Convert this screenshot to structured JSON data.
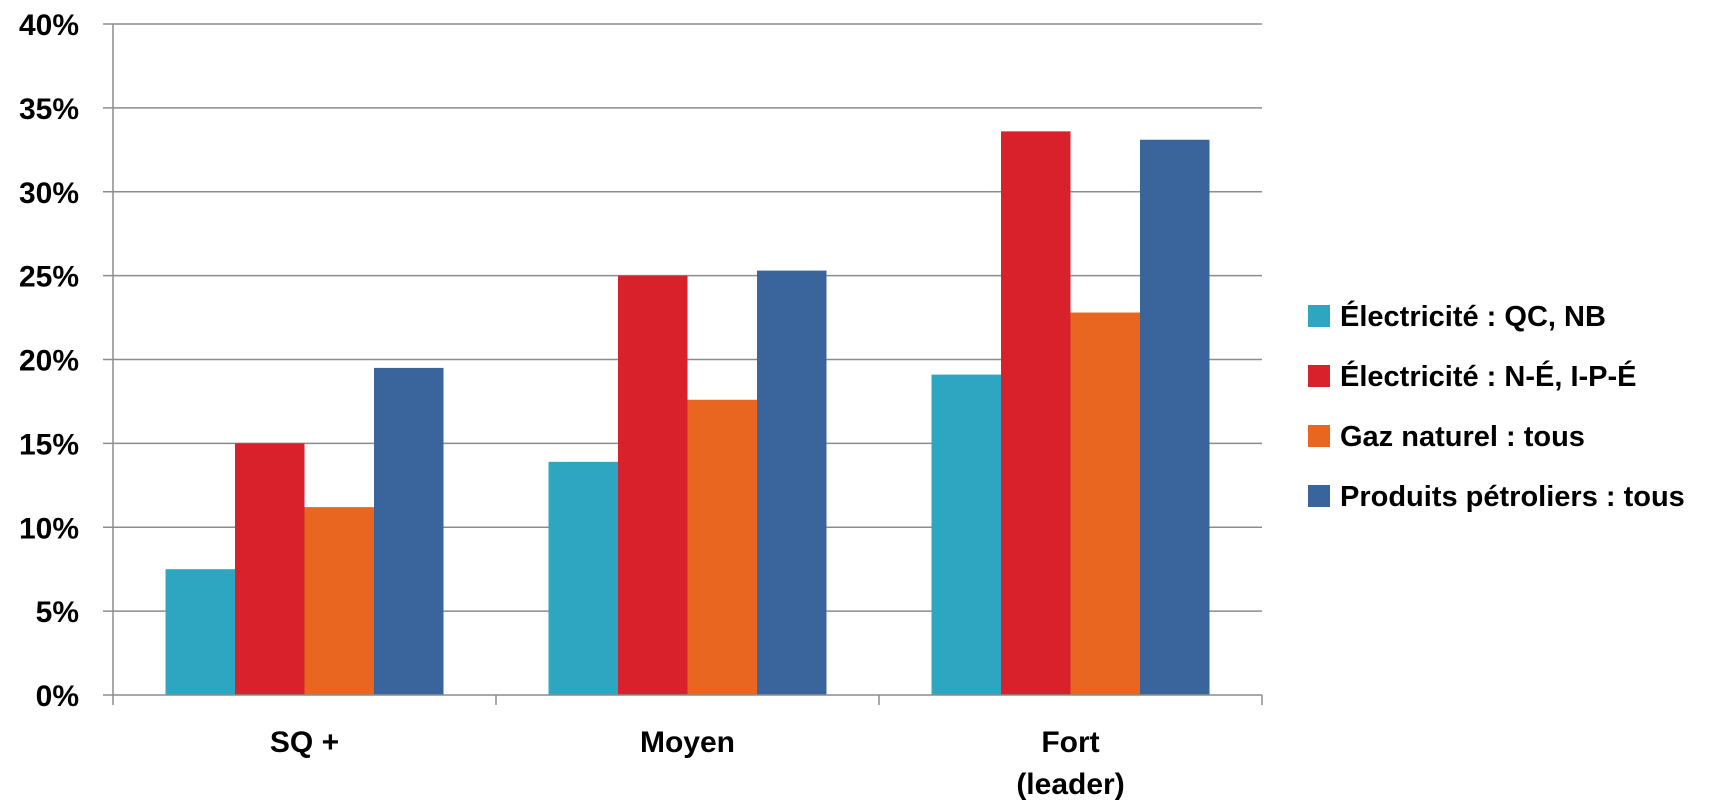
{
  "chart_data": {
    "type": "bar",
    "title": "",
    "xlabel": "",
    "ylabel": "",
    "ylim": [
      0,
      0.4
    ],
    "yticks": [
      0,
      0.05,
      0.1,
      0.15,
      0.2,
      0.25,
      0.3,
      0.35,
      0.4
    ],
    "ytick_labels": [
      "0%",
      "5%",
      "10%",
      "15%",
      "20%",
      "25%",
      "30%",
      "35%",
      "40%"
    ],
    "grid": "horizontal",
    "legend_position": "right",
    "categories": [
      {
        "lines": [
          "SQ +"
        ]
      },
      {
        "lines": [
          "Moyen"
        ]
      },
      {
        "lines": [
          "Fort",
          "(leader)"
        ]
      }
    ],
    "series": [
      {
        "name": "Électricité : QC, NB",
        "color": "#2ea6c2",
        "values": [
          0.075,
          0.139,
          0.191
        ]
      },
      {
        "name": "Électricité : N-É, I-P-É",
        "color": "#d9212c",
        "values": [
          0.15,
          0.25,
          0.336
        ]
      },
      {
        "name": "Gaz naturel : tous",
        "color": "#e8661f",
        "values": [
          0.112,
          0.176,
          0.228
        ]
      },
      {
        "name": "Produits pétroliers : tous",
        "color": "#3a649c",
        "values": [
          0.195,
          0.253,
          0.331
        ]
      }
    ],
    "colors": {
      "grid": "#8c8c8c",
      "axis": "#8c8c8c"
    }
  }
}
